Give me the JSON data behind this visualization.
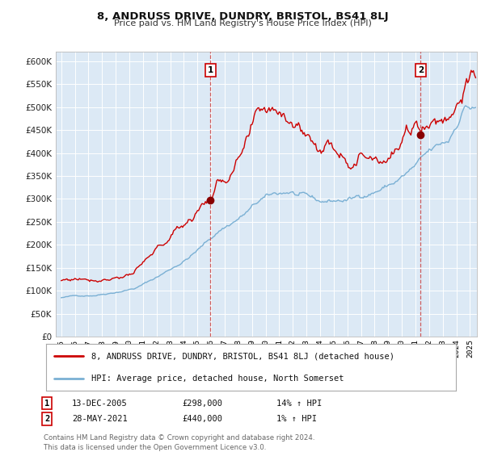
{
  "title": "8, ANDRUSS DRIVE, DUNDRY, BRISTOL, BS41 8LJ",
  "subtitle": "Price paid vs. HM Land Registry's House Price Index (HPI)",
  "legend_line1": "8, ANDRUSS DRIVE, DUNDRY, BRISTOL, BS41 8LJ (detached house)",
  "legend_line2": "HPI: Average price, detached house, North Somerset",
  "annotation1": {
    "label": "1",
    "date_str": "13-DEC-2005",
    "price_str": "£298,000",
    "hpi_str": "14% ↑ HPI",
    "x_year": 2005.96,
    "y_val": 298000
  },
  "annotation2": {
    "label": "2",
    "date_str": "28-MAY-2021",
    "price_str": "£440,000",
    "hpi_str": "1% ↑ HPI",
    "x_year": 2021.38,
    "y_val": 440000
  },
  "footer": "Contains HM Land Registry data © Crown copyright and database right 2024.\nThis data is licensed under the Open Government Licence v3.0.",
  "bg_color": "#dce9f5",
  "grid_color": "#ffffff",
  "red_line_color": "#cc0000",
  "blue_line_color": "#7ab0d4",
  "vline_color": "#cc4444",
  "marker_color": "#880000",
  "ylim": [
    0,
    620000
  ],
  "yticks": [
    0,
    50000,
    100000,
    150000,
    200000,
    250000,
    300000,
    350000,
    400000,
    450000,
    500000,
    550000,
    600000
  ],
  "xlim_start": 1994.6,
  "xlim_end": 2025.5,
  "x_start_year": 1995,
  "x_end_year": 2025
}
